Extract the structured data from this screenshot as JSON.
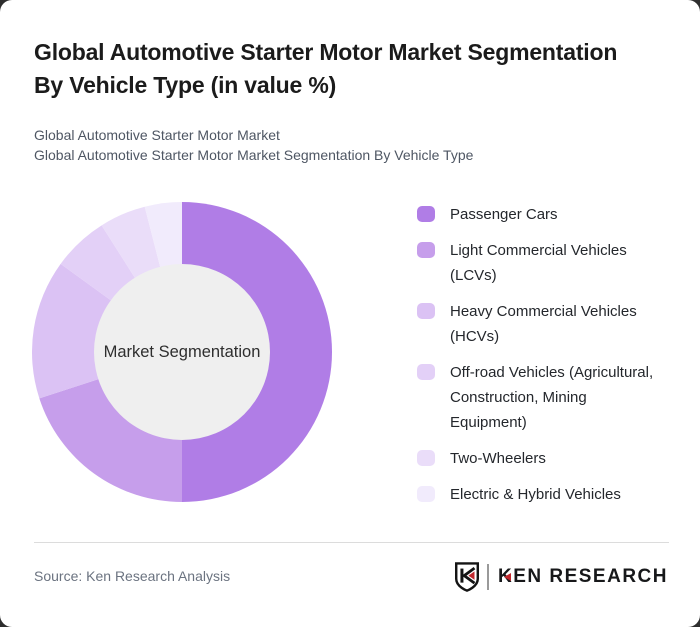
{
  "header": {
    "title": "Global Automotive Starter Motor Market Segmentation By Vehicle Type (in value %)",
    "subtitle_line1": "Global Automotive Starter Motor Market",
    "subtitle_line2": "Global Automotive Starter Motor Market Segmentation By Vehicle Type"
  },
  "chart_data": {
    "type": "pie",
    "donut": true,
    "title": "Global Automotive Starter Motor Market Segmentation By Vehicle Type (in value %)",
    "center_label": "Market Segmentation",
    "labels": [
      "Passenger Cars",
      "Light Commercial Vehicles (LCVs)",
      "Heavy Commercial Vehicles (HCVs)",
      "Off-road Vehicles (Agricultural, Construction, Mining Equipment)",
      "Two-Wheelers",
      "Electric & Hybrid Vehicles"
    ],
    "values": [
      50,
      20,
      15,
      6,
      5,
      4
    ],
    "unit": "%",
    "values_estimated_from_arcs": true,
    "colors": [
      "#b07de6",
      "#c69eeb",
      "#dbc2f4",
      "#e3d0f7",
      "#eaddf9",
      "#f1ebfc"
    ],
    "inner_circle_color": "#efefef",
    "start_angle_deg": 0,
    "direction": "clockwise",
    "legend_position": "right"
  },
  "footer": {
    "source": "Source: Ken Research Analysis",
    "logo_text": "KEN RESEARCH",
    "logo_accent_color": "#c1272d",
    "logo_ink_color": "#141414"
  }
}
